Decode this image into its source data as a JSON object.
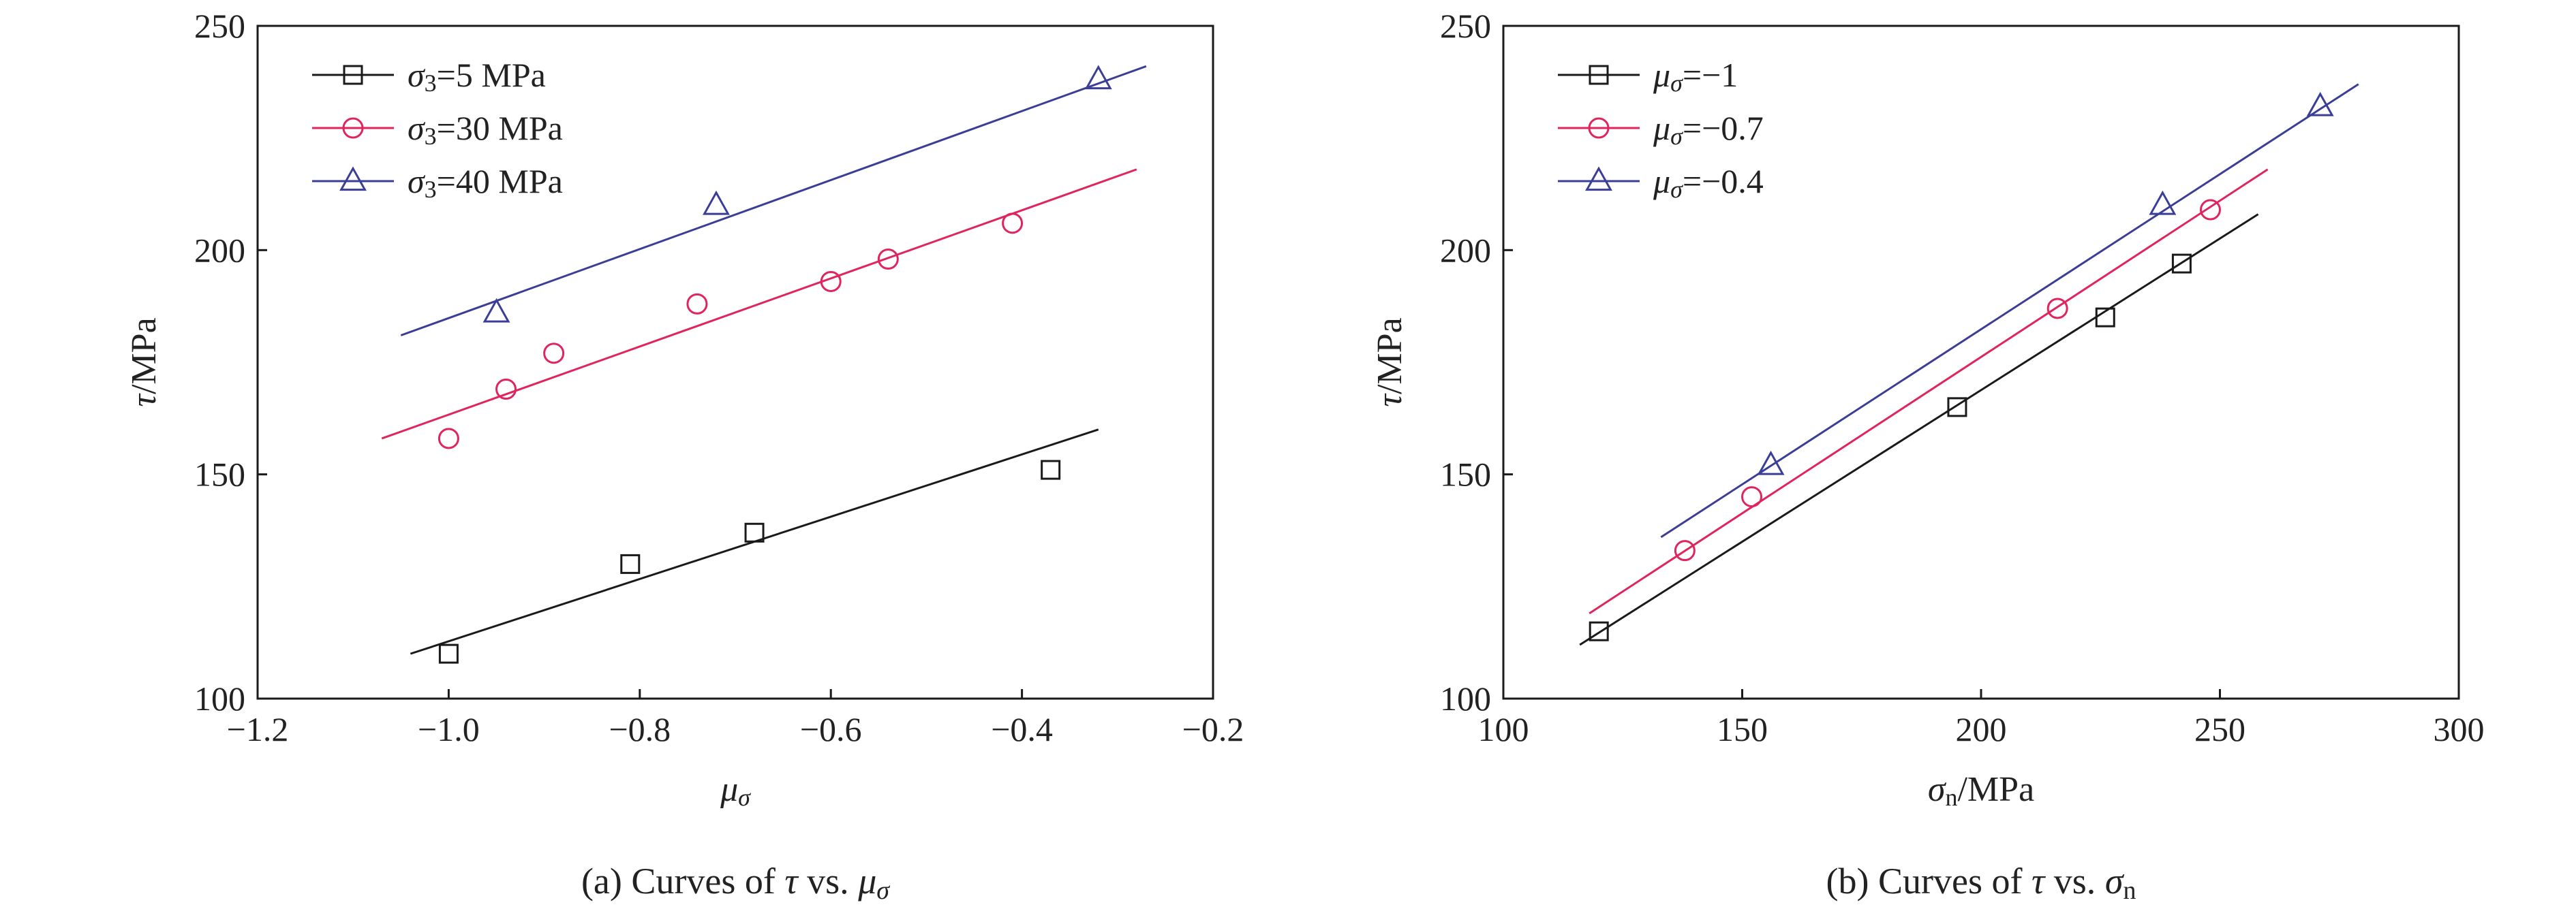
{
  "chart_data": [
    {
      "type": "scatter",
      "caption": {
        "prefix": "(a) Curves of ",
        "var1": "τ",
        "mid": " vs. ",
        "var2": "μ",
        "var2_sub": "σ"
      },
      "xlabel": {
        "base": "μ",
        "sub": "σ"
      },
      "ylabel": "τ/MPa",
      "xlim": [
        -1.2,
        -0.2
      ],
      "ylim": [
        100,
        250
      ],
      "xticks": [
        "−1.2",
        "−1.0",
        "−0.8",
        "−0.6",
        "−0.4",
        "−0.2"
      ],
      "yticks": [
        "100",
        "150",
        "200",
        "250"
      ],
      "legend_position": "top-left",
      "series": [
        {
          "name": "σ3=5 MPa",
          "legend_parts": {
            "var": "σ",
            "sub": "3",
            "rest": "=5 MPa"
          },
          "color": "#1a1a1a",
          "marker": "square",
          "x": [
            -1.0,
            -0.81,
            -0.68,
            -0.37
          ],
          "y": [
            110,
            130,
            137,
            151
          ],
          "fit": {
            "x": [
              -1.04,
              -0.32
            ],
            "y": [
              110,
              160
            ]
          }
        },
        {
          "name": "σ3=30 MPa",
          "legend_parts": {
            "var": "σ",
            "sub": "3",
            "rest": "=30 MPa"
          },
          "color": "#e0245e",
          "marker": "circle",
          "x": [
            -1.0,
            -0.94,
            -0.89,
            -0.74,
            -0.6,
            -0.54,
            -0.41
          ],
          "y": [
            158,
            169,
            177,
            188,
            193,
            198,
            206
          ],
          "fit": {
            "x": [
              -1.07,
              -0.28
            ],
            "y": [
              158,
              218
            ]
          }
        },
        {
          "name": "σ3=40 MPa",
          "legend_parts": {
            "var": "σ",
            "sub": "3",
            "rest": "=40 MPa"
          },
          "color": "#3b3e96",
          "marker": "triangle",
          "x": [
            -0.95,
            -0.72,
            -0.32
          ],
          "y": [
            186,
            210,
            238
          ],
          "fit": {
            "x": [
              -1.05,
              -0.27
            ],
            "y": [
              181,
              241
            ]
          }
        }
      ]
    },
    {
      "type": "scatter",
      "caption": {
        "prefix": "(b) Curves of ",
        "var1": "τ",
        "mid": " vs. ",
        "var2": "σ",
        "var2_sub": "n"
      },
      "xlabel": {
        "base": "σ",
        "sub": "n",
        "rest": "/MPa"
      },
      "ylabel": "τ/MPa",
      "xlim": [
        100,
        300
      ],
      "ylim": [
        100,
        250
      ],
      "xticks": [
        "100",
        "150",
        "200",
        "250",
        "300"
      ],
      "yticks": [
        "100",
        "150",
        "200",
        "250"
      ],
      "legend_position": "top-left",
      "series": [
        {
          "name": "μσ=−1",
          "legend_parts": {
            "var": "μ",
            "sub": "σ",
            "rest": "=−1"
          },
          "color": "#1a1a1a",
          "marker": "square",
          "x": [
            120,
            195,
            226,
            242
          ],
          "y": [
            115,
            165,
            185,
            197
          ],
          "fit": {
            "x": [
              116,
              258
            ],
            "y": [
              112,
              208
            ]
          }
        },
        {
          "name": "μσ=−0.7",
          "legend_parts": {
            "var": "μ",
            "sub": "σ",
            "rest": "=−0.7"
          },
          "color": "#e0245e",
          "marker": "circle",
          "x": [
            138,
            152,
            216,
            248
          ],
          "y": [
            133,
            145,
            187,
            209
          ],
          "fit": {
            "x": [
              118,
              260
            ],
            "y": [
              119,
              218
            ]
          }
        },
        {
          "name": "μσ=−0.4",
          "legend_parts": {
            "var": "μ",
            "sub": "σ",
            "rest": "=−0.4"
          },
          "color": "#3b3e96",
          "marker": "triangle",
          "x": [
            156,
            238,
            271
          ],
          "y": [
            152,
            210,
            232
          ],
          "fit": {
            "x": [
              133,
              279
            ],
            "y": [
              136,
              237
            ]
          }
        }
      ]
    }
  ]
}
